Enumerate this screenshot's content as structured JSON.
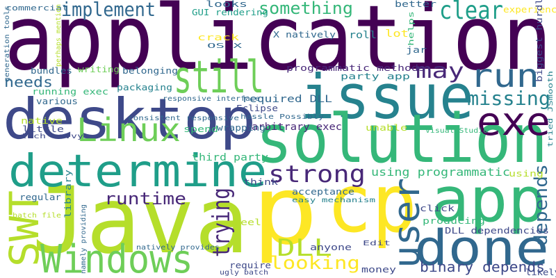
{
  "palette": {
    "dark_purple": "#440154",
    "purple": "#482878",
    "indigo": "#3e4989",
    "blue": "#31688e",
    "teal": "#26828e",
    "teal_green": "#1f9e89",
    "green": "#35b779",
    "light_green": "#6ece58",
    "lime": "#b5de2b",
    "yellow": "#fde725"
  },
  "words": [
    {
      "text": "application",
      "color": "#440154"
    },
    {
      "text": "desktop",
      "color": "#3e4989"
    },
    {
      "text": "Java",
      "color": "#b5de2b"
    },
    {
      "text": "issue",
      "color": "#26828e"
    },
    {
      "text": "solution",
      "color": "#35b779"
    },
    {
      "text": "p",
      "color": "#fde725"
    },
    {
      "text": "cp",
      "color": "#fde725"
    },
    {
      "text": "determine",
      "color": "#1f9e89"
    },
    {
      "text": "app",
      "color": "#35b779"
    },
    {
      "text": "done",
      "color": "#31688e"
    },
    {
      "text": "Windows",
      "color": "#6ece58"
    },
    {
      "text": "still",
      "color": "#6ece58"
    },
    {
      "text": "SWT",
      "color": "#b5de2b"
    },
    {
      "text": "user",
      "color": "#31688e"
    },
    {
      "text": "Linux",
      "color": "#6ece58"
    },
    {
      "text": "exe",
      "color": "#440154"
    },
    {
      "text": "run",
      "color": "#31688e"
    },
    {
      "text": "strong",
      "color": "#482878"
    },
    {
      "text": "trying",
      "color": "#482878"
    },
    {
      "text": "implement",
      "color": "#31688e"
    },
    {
      "text": "something",
      "color": "#35b779"
    },
    {
      "text": "clear",
      "color": "#1f9e89"
    },
    {
      "text": "may",
      "color": "#482878"
    },
    {
      "text": "missing",
      "color": "#26828e"
    },
    {
      "text": "depends",
      "color": "#31688e"
    },
    {
      "text": "runtime",
      "color": "#482878"
    },
    {
      "text": "DLL",
      "color": "#b5de2b"
    },
    {
      "text": "looking",
      "color": "#fde725"
    },
    {
      "text": "binary depends",
      "color": "#3e4989"
    },
    {
      "text": "needs",
      "color": "#31688e"
    },
    {
      "text": "using programmatic",
      "color": "#35b779"
    },
    {
      "text": "programmatic methods",
      "color": "#482878"
    },
    {
      "text": "party app",
      "color": "#26828e"
    },
    {
      "text": "required DLL",
      "color": "#31688e"
    },
    {
      "text": "running exec",
      "color": "#35b779"
    },
    {
      "text": "arbitrary exec",
      "color": "#482878"
    },
    {
      "text": "third party",
      "color": "#35b779"
    },
    {
      "text": "GUI rendering",
      "color": "#1f9e89"
    },
    {
      "text": "X natively",
      "color": "#31688e"
    },
    {
      "text": "roll",
      "color": "#26828e"
    },
    {
      "text": "lot",
      "color": "#fde725"
    },
    {
      "text": "jar",
      "color": "#31688e"
    },
    {
      "text": "helps",
      "color": "#35b779"
    },
    {
      "text": "better",
      "color": "#31688e"
    },
    {
      "text": "experience",
      "color": "#fde725"
    },
    {
      "text": "looks",
      "color": "#31688e"
    },
    {
      "text": "crack",
      "color": "#fde725"
    },
    {
      "text": "OS X",
      "color": "#31688e"
    },
    {
      "text": "commercial",
      "color": "#31688e"
    },
    {
      "text": "generation tools",
      "color": "#31688e"
    },
    {
      "text": "perhaps mention",
      "color": "#b5de2b"
    },
    {
      "text": "bundles",
      "color": "#31688e"
    },
    {
      "text": "writing",
      "color": "#6ece58"
    },
    {
      "text": "belonging",
      "color": "#31688e"
    },
    {
      "text": "packaging",
      "color": "#26828e"
    },
    {
      "text": "responsive interface",
      "color": "#31688e"
    },
    {
      "text": "various",
      "color": "#31688e"
    },
    {
      "text": "Eclipse",
      "color": "#3e4989"
    },
    {
      "text": "hassle Possibly",
      "color": "#31688e"
    },
    {
      "text": "consistent responsive",
      "color": "#31688e"
    },
    {
      "text": "native",
      "color": "#b5de2b"
    },
    {
      "text": "little",
      "color": "#3e4989"
    },
    {
      "text": "tech savvy",
      "color": "#3e4989"
    },
    {
      "text": "spend",
      "color": "#35b779"
    },
    {
      "text": "wrapping",
      "color": "#31688e"
    },
    {
      "text": "unable",
      "color": "#b5de2b"
    },
    {
      "text": "Visual Studio",
      "color": "#35b779"
    },
    {
      "text": "biggest hurdle",
      "color": "#3e4989"
    },
    {
      "text": "tried JSmooth",
      "color": "#26828e"
    },
    {
      "text": "using",
      "color": "#b5de2b"
    },
    {
      "text": "library",
      "color": "#26828e"
    },
    {
      "text": "think",
      "color": "#3e4989"
    },
    {
      "text": "acceptance",
      "color": "#31688e"
    },
    {
      "text": "easy mechanism",
      "color": "#26828e"
    },
    {
      "text": "regular",
      "color": "#31688e"
    },
    {
      "text": "batch file",
      "color": "#b5de2b"
    },
    {
      "text": "namely providing",
      "color": "#31688e"
    },
    {
      "text": "feel",
      "color": "#b5de2b"
    },
    {
      "text": "click",
      "color": "#3e4989"
    },
    {
      "text": "producing",
      "color": "#35b779"
    },
    {
      "text": "DLL dependencies",
      "color": "#3e4989"
    },
    {
      "text": "natively provides",
      "color": "#31688e"
    },
    {
      "text": "anyone",
      "color": "#3e4989"
    },
    {
      "text": "Edit",
      "color": "#3e4989"
    },
    {
      "text": "require",
      "color": "#3e4989"
    },
    {
      "text": "ugly batch",
      "color": "#3e4989"
    },
    {
      "text": "money",
      "color": "#3e4989"
    },
    {
      "text": "likely",
      "color": "#3e4989"
    }
  ]
}
